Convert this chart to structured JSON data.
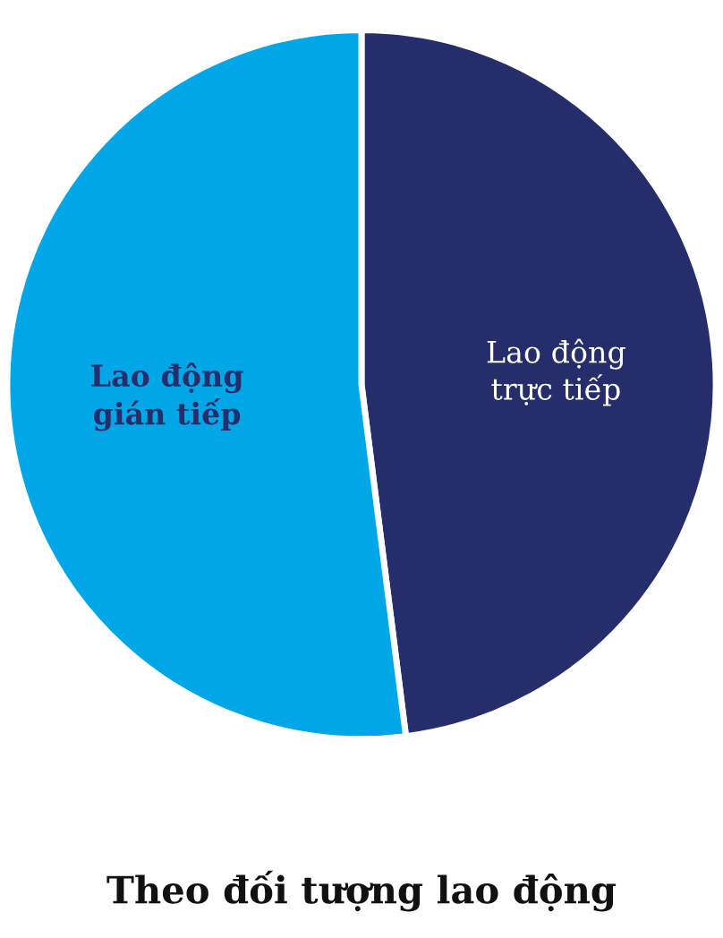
{
  "chart_data": {
    "type": "pie",
    "title": "Theo đối tượng lao động",
    "categories": [
      "Lao động trực tiếp",
      "Lao động gián tiếp"
    ],
    "values": [
      48,
      52
    ],
    "colors": [
      "#262d6b",
      "#00a6e6"
    ]
  }
}
